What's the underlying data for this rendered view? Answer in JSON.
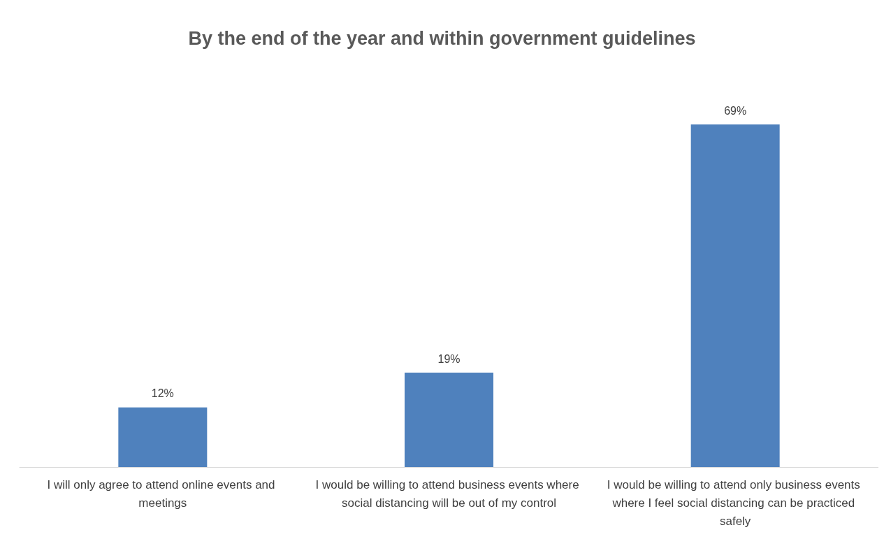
{
  "chart_data": {
    "type": "bar",
    "title": "By the end of the year and within government guidelines",
    "categories": [
      "I will only agree to attend online events and meetings",
      "I would be willing to attend business events where social distancing will be out of my control",
      "I would be willing to attend only business events where I feel social distancing can be practiced safely"
    ],
    "values": [
      12,
      19,
      69
    ],
    "value_labels": [
      "12%",
      "19%",
      "69%"
    ],
    "color": "#4f81bd"
  }
}
